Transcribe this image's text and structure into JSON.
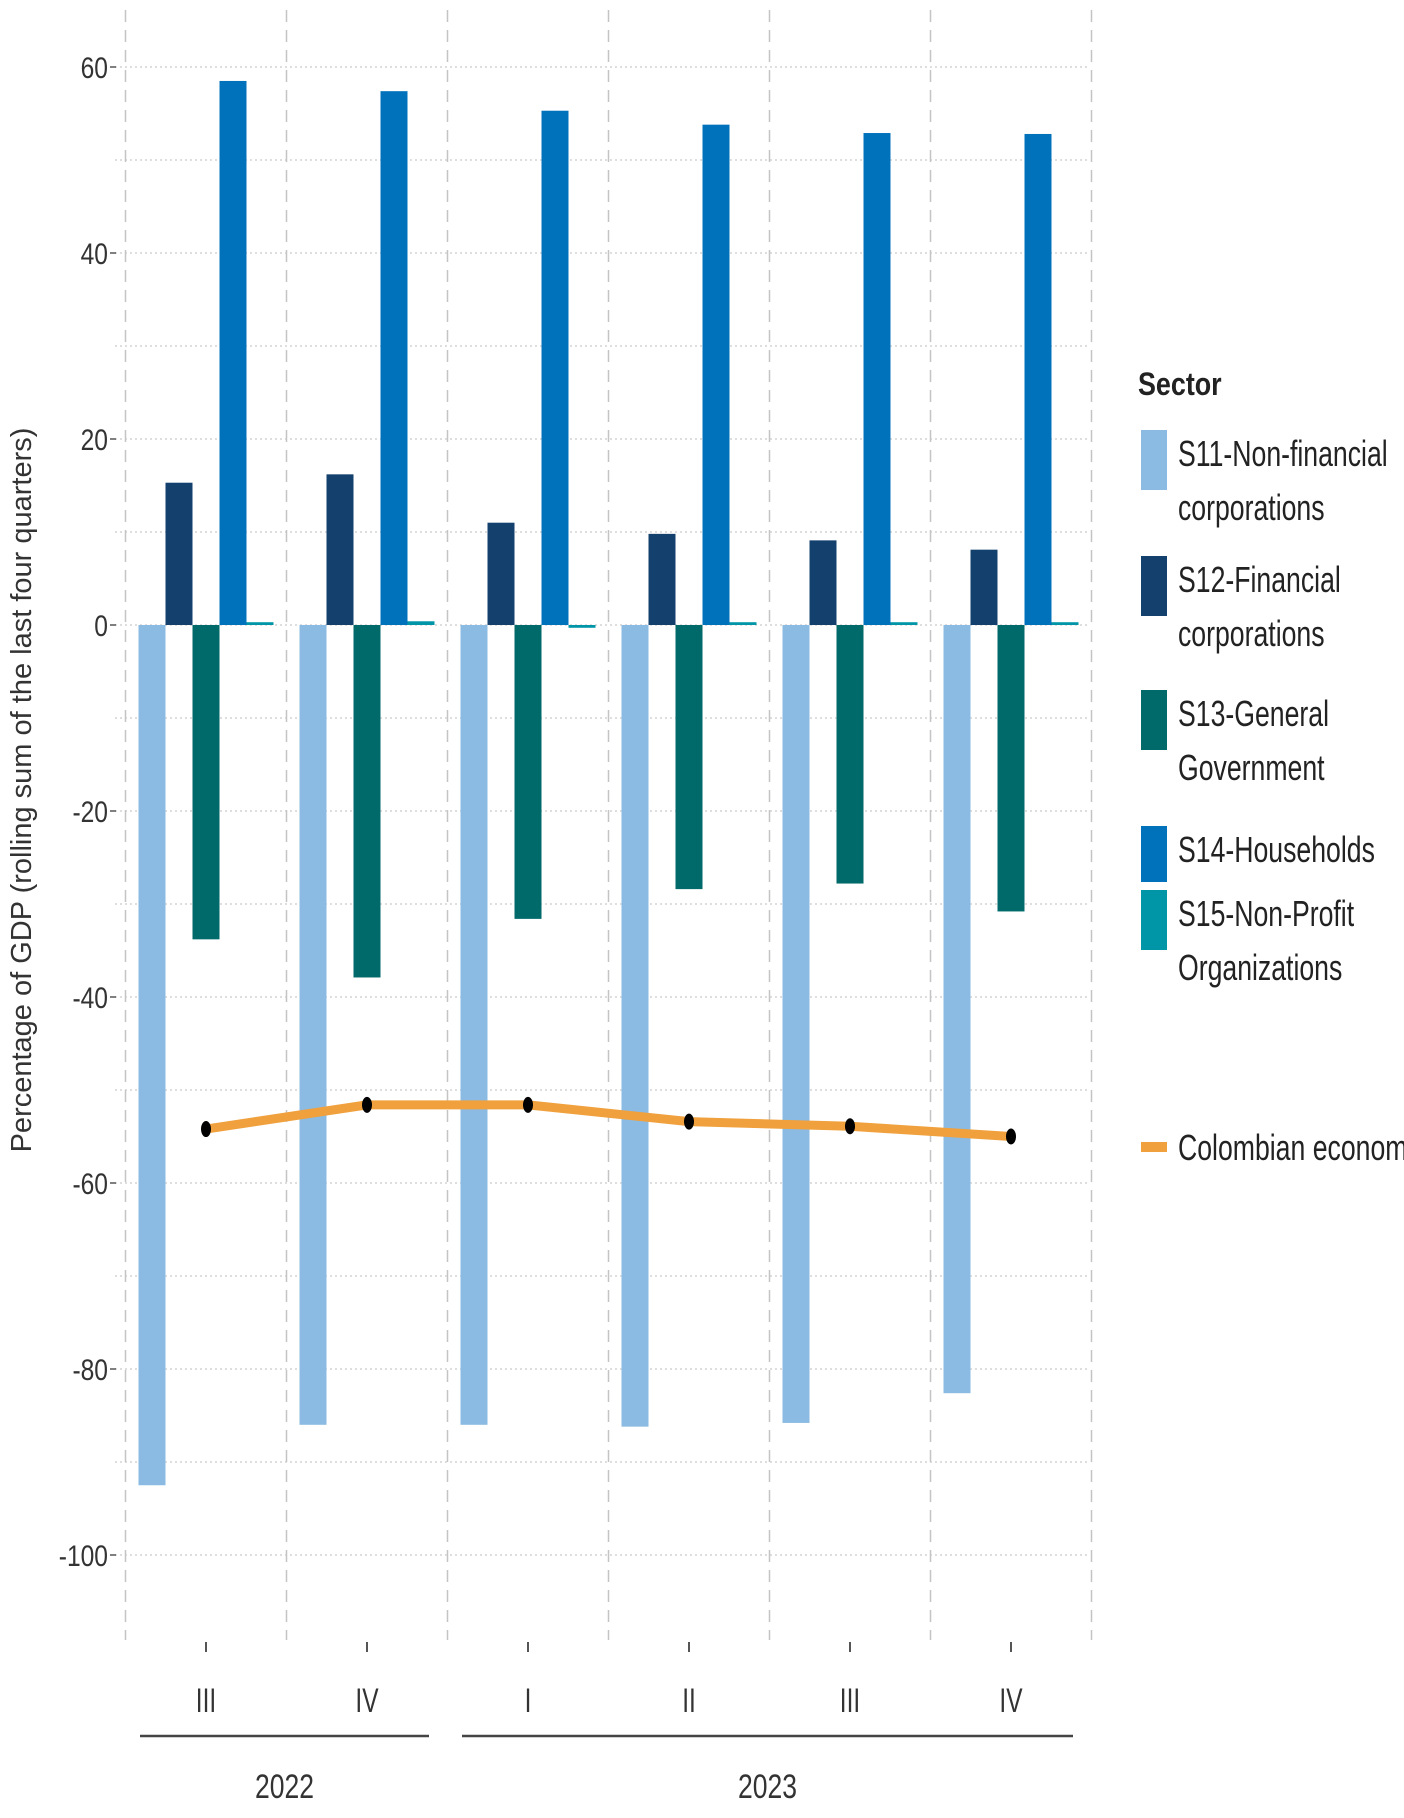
{
  "chart_data": {
    "type": "bar",
    "title": "",
    "ylabel": "Percentage of GDP (rolling sum of the last four quarters)",
    "ylim": [
      -108,
      66
    ],
    "yticks": [
      60,
      40,
      20,
      0,
      -20,
      -40,
      -60,
      -80,
      -100
    ],
    "gridlines": true,
    "legend_title": "Sector",
    "legend_position": "right",
    "categories": [
      "III",
      "IV",
      "I",
      "II",
      "III",
      "IV"
    ],
    "year_groups": [
      {
        "label": "2022",
        "categories": [
          "III",
          "IV"
        ]
      },
      {
        "label": "2023",
        "categories": [
          "I",
          "II",
          "III",
          "IV"
        ]
      }
    ],
    "series": [
      {
        "name": "S11-Non-financial corporations",
        "legend_lines": [
          "S11-Non-financial",
          "corporations"
        ],
        "color": "#8bbbe3",
        "values": [
          -92.5,
          -86.0,
          -86.0,
          -86.2,
          -85.8,
          -82.6
        ]
      },
      {
        "name": "S12-Financial corporations",
        "legend_lines": [
          "S12-Financial",
          "corporations"
        ],
        "color": "#14406e",
        "values": [
          15.3,
          16.2,
          11.0,
          9.8,
          9.1,
          8.1
        ]
      },
      {
        "name": "S13-General Government",
        "legend_lines": [
          "S13-General",
          "Government"
        ],
        "color": "#006a6a",
        "values": [
          -33.8,
          -37.9,
          -31.6,
          -28.4,
          -27.8,
          -30.8
        ]
      },
      {
        "name": "S14-Households",
        "legend_lines": [
          "S14-Households"
        ],
        "color": "#0072bc",
        "values": [
          58.5,
          57.4,
          55.3,
          53.8,
          52.9,
          52.8
        ]
      },
      {
        "name": "S15-Non-Profit Organizations",
        "legend_lines": [
          "S15-Non-Profit",
          "Organizations"
        ],
        "color": "#0096a8",
        "values": [
          0.3,
          0.4,
          -0.3,
          0.3,
          0.3,
          0.3
        ]
      }
    ],
    "line_series": {
      "name": "Colombian economy",
      "color": "#f0a03c",
      "values": [
        -54.2,
        -51.6,
        -51.6,
        -53.4,
        -53.9,
        -55.0
      ]
    }
  }
}
